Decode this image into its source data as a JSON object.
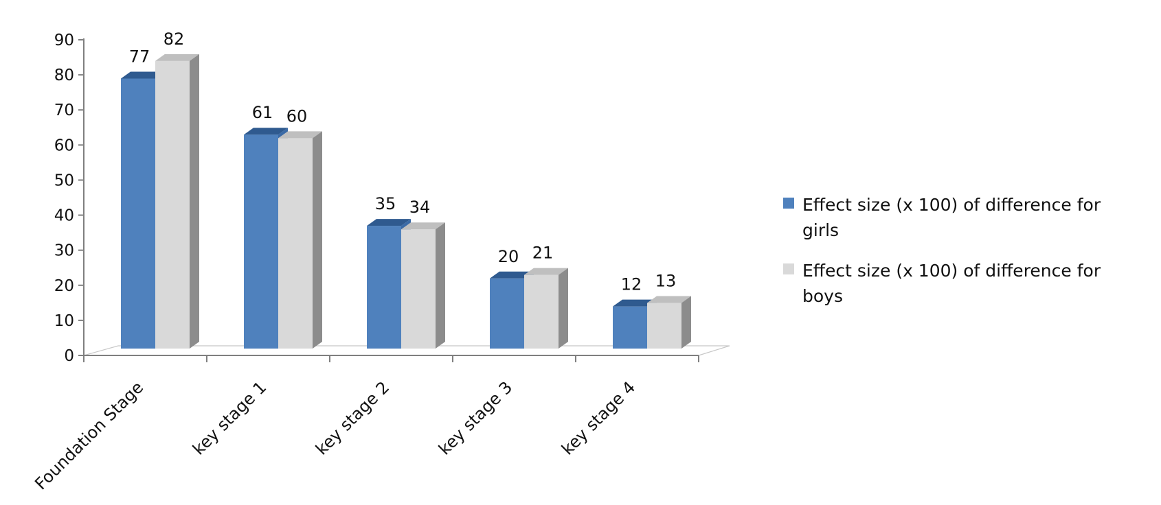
{
  "chart_data": {
    "type": "bar",
    "categories": [
      "Foundation Stage",
      "key stage 1",
      "key stage 2",
      "key stage 3",
      "key stage 4"
    ],
    "series": [
      {
        "name": "Effect size (x 100) of difference for girls",
        "values": [
          77,
          61,
          35,
          20,
          12
        ],
        "data_labels": [
          "77",
          "61",
          "35",
          "20",
          "12"
        ]
      },
      {
        "name": "Effect size (x 100) of difference for boys",
        "values": [
          82,
          60,
          34,
          21,
          13
        ],
        "data_labels": [
          "82",
          "60",
          "34",
          "21",
          "13"
        ]
      }
    ],
    "ylim": [
      0,
      90
    ],
    "yticks": [
      "0",
      "10",
      "20",
      "30",
      "40",
      "50",
      "60",
      "70",
      "80",
      "90"
    ],
    "grid": false,
    "legend_position": "right",
    "style_3d": true
  },
  "legend": {
    "girls_line1": "Effect size (x 100) of difference for",
    "girls_line2": "girls",
    "boys_line1": "Effect size (x 100) of difference for",
    "boys_line2": "boys"
  },
  "colors": {
    "girls_front": "#4f81bd",
    "girls_top": "#2f5a8f",
    "girls_side": "#3a6aa6",
    "boys_front": "#d9d9d9",
    "boys_top": "#bfbfbf",
    "boys_side": "#8c8c8c",
    "axis": "#7f7f7f"
  }
}
